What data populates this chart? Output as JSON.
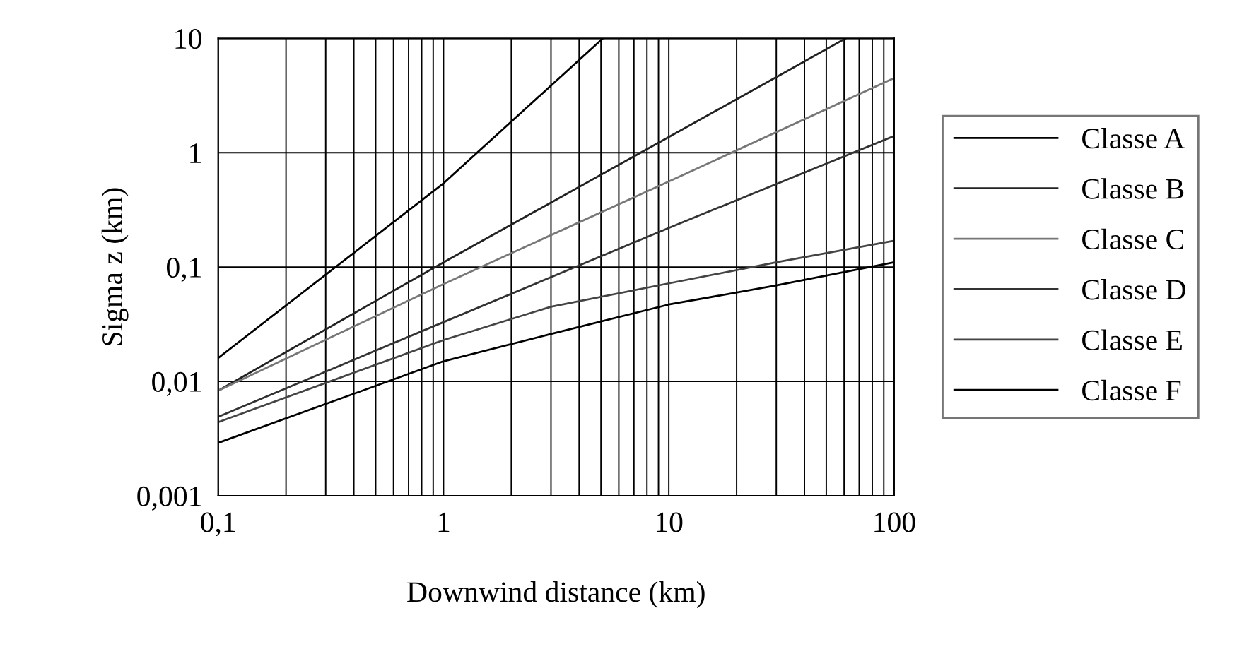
{
  "chart_data": {
    "type": "line",
    "xlabel": "Downwind distance (km)",
    "ylabel": "Sigma z (km)",
    "log": "xy",
    "grid": true,
    "legend": "right",
    "xlim": [
      0.1,
      100
    ],
    "ylim": [
      0.001,
      10
    ],
    "xticks": [
      {
        "value": 0.1,
        "label": "0,1"
      },
      {
        "value": 0.2,
        "label": null
      },
      {
        "value": 0.3,
        "label": null
      },
      {
        "value": 0.4,
        "label": null
      },
      {
        "value": 0.5,
        "label": null
      },
      {
        "value": 0.6,
        "label": null
      },
      {
        "value": 0.7,
        "label": null
      },
      {
        "value": 0.8,
        "label": null
      },
      {
        "value": 0.9,
        "label": null
      },
      1,
      {
        "value": 2,
        "label": null
      },
      {
        "value": 3,
        "label": null
      },
      {
        "value": 4,
        "label": null
      },
      {
        "value": 5,
        "label": null
      },
      {
        "value": 6,
        "label": null
      },
      {
        "value": 7,
        "label": null
      },
      {
        "value": 8,
        "label": null
      },
      {
        "value": 9,
        "label": null
      },
      10,
      {
        "value": 20,
        "label": null
      },
      {
        "value": 30,
        "label": null
      },
      {
        "value": 40,
        "label": null
      },
      {
        "value": 50,
        "label": null
      },
      {
        "value": 60,
        "label": null
      },
      {
        "value": 70,
        "label": null
      },
      {
        "value": 80,
        "label": null
      },
      {
        "value": 90,
        "label": null
      },
      100
    ],
    "yticks": [
      {
        "value": 0.001,
        "label": "0,001"
      },
      {
        "value": 0.01,
        "label": "0,01"
      },
      {
        "value": 0.1,
        "label": "0,1"
      },
      1,
      10
    ],
    "series": [
      {
        "name": "Classe A",
        "color": "#000000",
        "x": [
          0.1,
          1,
          5.1
        ],
        "values": [
          0.016,
          0.54,
          10
        ]
      },
      {
        "name": "Classe B",
        "color": "#222222",
        "x": [
          0.1,
          1,
          10,
          61
        ],
        "values": [
          0.0083,
          0.11,
          1.37,
          10
        ]
      },
      {
        "name": "Classe C",
        "color": "#777777",
        "x": [
          0.1,
          1,
          10,
          100
        ],
        "values": [
          0.0083,
          0.071,
          0.56,
          4.5
        ]
      },
      {
        "name": "Classe D",
        "color": "#333333",
        "x": [
          0.1,
          1,
          10,
          100
        ],
        "values": [
          0.0049,
          0.033,
          0.22,
          1.4
        ]
      },
      {
        "name": "Classe E",
        "color": "#444444",
        "x": [
          0.1,
          1,
          3,
          10,
          30,
          100
        ],
        "values": [
          0.0044,
          0.023,
          0.045,
          0.072,
          0.11,
          0.17
        ]
      },
      {
        "name": "Classe F",
        "color": "#000000",
        "x": [
          0.1,
          1,
          3,
          10,
          30,
          100
        ],
        "values": [
          0.0029,
          0.015,
          0.026,
          0.047,
          0.069,
          0.11
        ]
      }
    ]
  }
}
